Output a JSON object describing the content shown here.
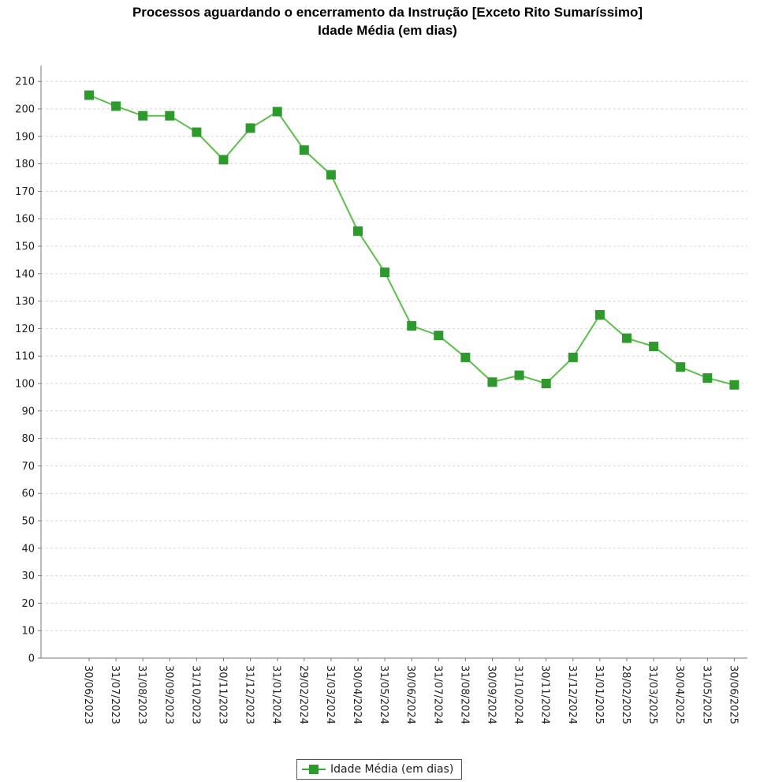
{
  "chart_data": {
    "type": "line",
    "title": "Processos aguardando o encerramento da Instrução [Exceto Rito Sumaríssimo]",
    "subtitle": "Idade Média (em dias)",
    "xlabel": "",
    "ylabel": "",
    "ylim": [
      0,
      210
    ],
    "yticks": [
      0,
      10,
      20,
      30,
      40,
      50,
      60,
      70,
      80,
      90,
      100,
      110,
      120,
      130,
      140,
      150,
      160,
      170,
      180,
      190,
      200,
      210
    ],
    "grid": true,
    "legend_position": "bottom-center",
    "categories": [
      "30/06/2023",
      "31/07/2023",
      "31/08/2023",
      "30/09/2023",
      "31/10/2023",
      "30/11/2023",
      "31/12/2023",
      "31/01/2024",
      "29/02/2024",
      "31/03/2024",
      "30/04/2024",
      "31/05/2024",
      "30/06/2024",
      "31/07/2024",
      "31/08/2024",
      "30/09/2024",
      "31/10/2024",
      "30/11/2024",
      "31/12/2024",
      "31/01/2025",
      "28/02/2025",
      "31/03/2025",
      "30/04/2025",
      "31/05/2025",
      "30/06/2025"
    ],
    "series": [
      {
        "name": "Idade Média (em dias)",
        "color": "#2e9a2e",
        "line_color": "#5cbf4a",
        "values": [
          205,
          201,
          197.5,
          197.5,
          191.5,
          181.5,
          193,
          199,
          185,
          176,
          155.5,
          140.5,
          121,
          117.5,
          109.5,
          100.5,
          103,
          100,
          109.5,
          125,
          116.5,
          113.5,
          106,
          102,
          99.5
        ]
      }
    ]
  }
}
